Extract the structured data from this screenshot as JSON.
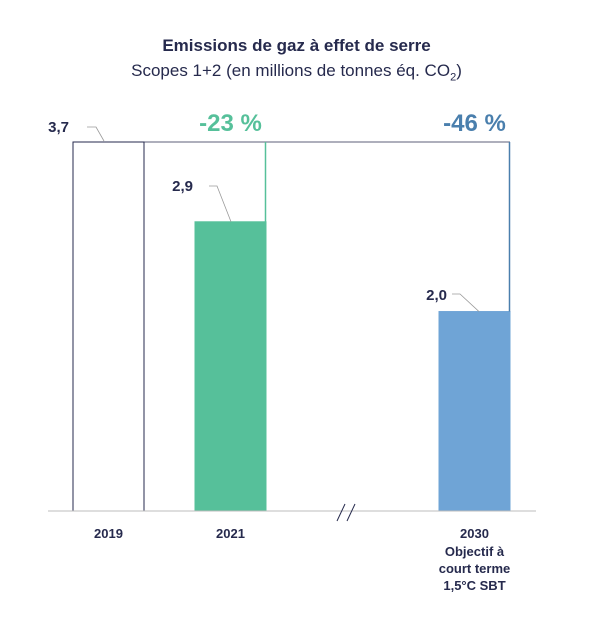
{
  "chart_data": {
    "type": "bar",
    "title": "Emissions de gaz à effet de serre",
    "subtitle_main": "Scopes 1+2 (en millions de tonnes éq. CO",
    "subtitle_sub": "2",
    "subtitle_end": ")",
    "categories": [
      "2019",
      "2021",
      "2030"
    ],
    "category_sublabels": [
      [],
      [],
      [
        "Objectif à",
        "court terme",
        "1,5°C SBT"
      ]
    ],
    "values": [
      3.7,
      2.9,
      2.0
    ],
    "value_labels": [
      "3,7",
      "2,9",
      "2,0"
    ],
    "bar_fills": [
      "#ffffff",
      "#56c09a",
      "#6fa4d6"
    ],
    "bar_strokes": [
      "#262a4d",
      "#56c09a",
      "#6fa4d6"
    ],
    "reductions": [
      {
        "label": "-23 %",
        "category": "2021",
        "color": "#56c09a"
      },
      {
        "label": "-46 %",
        "category": "2030",
        "color": "#4a7fad"
      }
    ],
    "axis_break": true,
    "ylim": [
      0,
      3.7
    ]
  }
}
